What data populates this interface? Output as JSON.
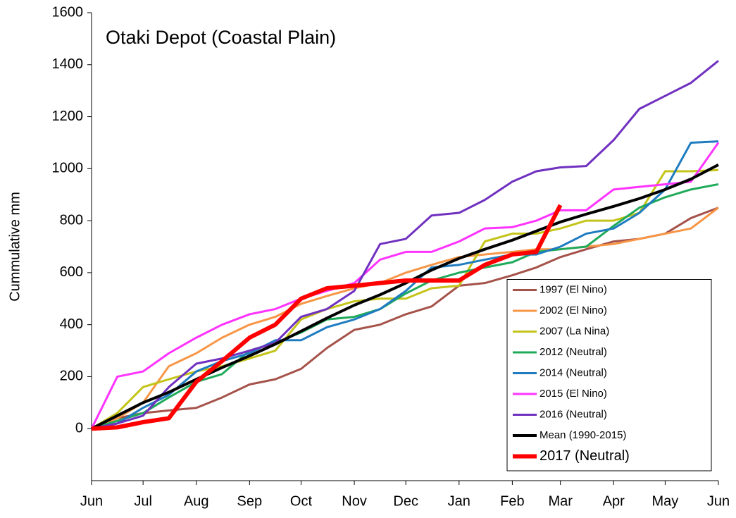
{
  "chart_data": {
    "type": "line",
    "title": "Otaki Depot (Coastal Plain)",
    "y_label": "Cummulative mm",
    "x": [
      0,
      15,
      30,
      45,
      61,
      76,
      92,
      107,
      122,
      137,
      153,
      168,
      183,
      198,
      214,
      229,
      245,
      259,
      273,
      288,
      304,
      319,
      334,
      349,
      365
    ],
    "xlim": [
      0,
      365
    ],
    "xticks": [
      {
        "value": 0,
        "label": "Jun"
      },
      {
        "value": 30,
        "label": "Jul"
      },
      {
        "value": 61,
        "label": "Aug"
      },
      {
        "value": 92,
        "label": "Sep"
      },
      {
        "value": 122,
        "label": "Oct"
      },
      {
        "value": 153,
        "label": "Nov"
      },
      {
        "value": 183,
        "label": "Dec"
      },
      {
        "value": 214,
        "label": "Jan"
      },
      {
        "value": 245,
        "label": "Feb"
      },
      {
        "value": 273,
        "label": "Mar"
      },
      {
        "value": 304,
        "label": "Apr"
      },
      {
        "value": 334,
        "label": "May"
      },
      {
        "value": 365,
        "label": "Jun"
      }
    ],
    "ylim": [
      -200,
      1600
    ],
    "yticks": [
      0,
      200,
      400,
      600,
      800,
      1000,
      1200,
      1400,
      1600
    ],
    "grid": false,
    "legend": "lower right",
    "series": [
      {
        "name": "1997 (El Nino)",
        "color": "#a5524a",
        "values": [
          0,
          40,
          60,
          70,
          80,
          120,
          170,
          190,
          230,
          310,
          380,
          400,
          440,
          470,
          550,
          560,
          590,
          620,
          660,
          690,
          720,
          730,
          750,
          810,
          850
        ]
      },
      {
        "name": "2002 (El Nino)",
        "color": "#f79646",
        "values": [
          0,
          40,
          100,
          240,
          290,
          350,
          400,
          430,
          480,
          510,
          540,
          560,
          600,
          630,
          660,
          670,
          680,
          690,
          690,
          700,
          710,
          730,
          750,
          770,
          850
        ]
      },
      {
        "name": "2007 (La Nina)",
        "color": "#c4c41a",
        "values": [
          0,
          60,
          160,
          190,
          220,
          240,
          270,
          300,
          420,
          460,
          490,
          500,
          500,
          540,
          550,
          720,
          750,
          750,
          770,
          800,
          800,
          830,
          990,
          990,
          995
        ]
      },
      {
        "name": "2012 (Neutral)",
        "color": "#1faa5a",
        "values": [
          0,
          30,
          60,
          120,
          180,
          210,
          300,
          330,
          370,
          420,
          430,
          460,
          520,
          570,
          600,
          620,
          640,
          680,
          690,
          700,
          780,
          850,
          890,
          920,
          940
        ]
      },
      {
        "name": "2014 (Neutral)",
        "color": "#1f7cc0",
        "values": [
          0,
          20,
          80,
          130,
          220,
          260,
          290,
          340,
          340,
          390,
          420,
          460,
          530,
          620,
          630,
          650,
          670,
          670,
          700,
          750,
          770,
          830,
          920,
          1100,
          1105
        ]
      },
      {
        "name": "2015 (El Nino)",
        "color": "#ff33ff",
        "values": [
          0,
          200,
          220,
          290,
          350,
          400,
          440,
          460,
          500,
          530,
          560,
          650,
          680,
          680,
          720,
          770,
          775,
          800,
          840,
          840,
          920,
          930,
          940,
          950,
          1100
        ]
      },
      {
        "name": "2016 (Neutral)",
        "color": "#7030c0",
        "values": [
          0,
          20,
          50,
          160,
          250,
          270,
          300,
          330,
          430,
          460,
          530,
          710,
          730,
          820,
          830,
          880,
          950,
          990,
          1005,
          1010,
          1110,
          1230,
          1280,
          1330,
          1415
        ]
      },
      {
        "name": "Mean (1990-2015)",
        "color": "#000000",
        "values": [
          0,
          50,
          100,
          140,
          190,
          235,
          280,
          325,
          375,
          425,
          475,
          515,
          560,
          610,
          655,
          690,
          725,
          760,
          795,
          825,
          855,
          885,
          920,
          960,
          1015
        ]
      },
      {
        "name": "2017 (Neutral)",
        "color": "#ff0000",
        "values": [
          0,
          5,
          25,
          40,
          180,
          260,
          350,
          400,
          500,
          540,
          550,
          560,
          570,
          570,
          570,
          630,
          670,
          680,
          860,
          null,
          null,
          null,
          null,
          null,
          null
        ]
      }
    ]
  }
}
